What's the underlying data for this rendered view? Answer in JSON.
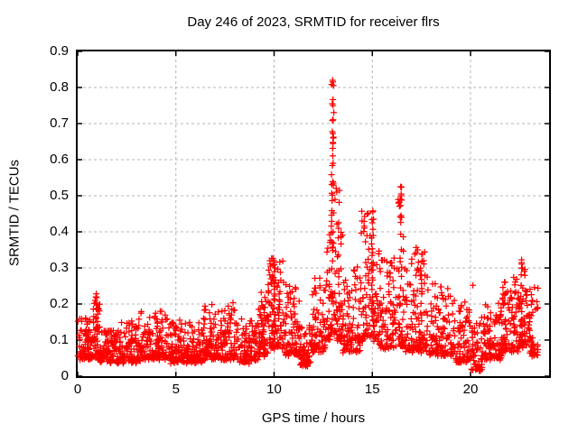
{
  "chart_data": {
    "type": "scatter",
    "title": "Day 246 of 2023, SRMTID for receiver flrs",
    "xlabel": "GPS time / hours",
    "ylabel": "SRMTID / TECUs",
    "xlim": [
      0,
      24
    ],
    "ylim": [
      0,
      0.9
    ],
    "xtick_values": [
      0,
      5,
      10,
      15,
      20
    ],
    "xtick_labels": [
      "0",
      "5",
      "10",
      "15",
      "20"
    ],
    "ytick_values": [
      0,
      0.1,
      0.2,
      0.3,
      0.4,
      0.5,
      0.6,
      0.7,
      0.8,
      0.9
    ],
    "ytick_labels": [
      "0",
      "0.1",
      "0.2",
      "0.3",
      "0.4",
      "0.5",
      "0.6",
      "0.7",
      "0.8",
      "0.9"
    ],
    "grid": {
      "show": true,
      "color": "#b4b4b4",
      "dash": [
        3,
        3
      ]
    },
    "axis_color": "#000000",
    "background_color": "#ffffff",
    "marker": {
      "shape": "plus",
      "color": "#ff0000",
      "size": 7
    },
    "x_data_range": [
      0,
      23.45
    ],
    "peak_summary": {
      "baseline_level": 0.09,
      "main_peak": {
        "x": 13.0,
        "y": 0.82
      },
      "secondary_peaks": [
        {
          "x": 1.0,
          "y": 0.23
        },
        {
          "x": 10.0,
          "y": 0.32
        },
        {
          "x": 15.0,
          "y": 0.455
        },
        {
          "x": 16.45,
          "y": 0.525
        },
        {
          "x": 22.6,
          "y": 0.315
        }
      ]
    },
    "envelope_segments": [
      [
        0.0,
        0.7,
        0.05,
        0.16,
        2.0,
        110
      ],
      [
        0.7,
        1.15,
        0.05,
        0.225,
        1.9,
        120
      ],
      [
        1.15,
        2.2,
        0.04,
        0.13,
        2.0,
        100
      ],
      [
        2.2,
        3.2,
        0.04,
        0.155,
        2.0,
        100
      ],
      [
        3.2,
        4.7,
        0.05,
        0.185,
        2.2,
        100
      ],
      [
        4.7,
        6.4,
        0.04,
        0.15,
        2.0,
        100
      ],
      [
        6.4,
        8.1,
        0.05,
        0.2,
        2.2,
        105
      ],
      [
        8.1,
        9.2,
        0.04,
        0.16,
        2.0,
        100
      ],
      [
        9.2,
        9.7,
        0.06,
        0.24,
        1.8,
        115
      ],
      [
        9.7,
        10.5,
        0.08,
        0.33,
        1.8,
        130
      ],
      [
        10.5,
        11.3,
        0.06,
        0.26,
        2.0,
        110
      ],
      [
        11.3,
        11.9,
        0.03,
        0.14,
        1.8,
        100
      ],
      [
        11.9,
        12.6,
        0.07,
        0.28,
        2.0,
        110
      ],
      [
        12.6,
        12.85,
        0.1,
        0.46,
        2.4,
        120
      ],
      [
        12.85,
        13.15,
        0.12,
        0.83,
        2.4,
        130
      ],
      [
        13.15,
        13.5,
        0.1,
        0.56,
        2.5,
        120
      ],
      [
        13.5,
        14.4,
        0.07,
        0.3,
        2.2,
        105
      ],
      [
        14.4,
        15.35,
        0.1,
        0.46,
        2.2,
        115
      ],
      [
        15.35,
        16.2,
        0.08,
        0.33,
        2.2,
        105
      ],
      [
        16.2,
        16.7,
        0.08,
        0.53,
        2.5,
        110
      ],
      [
        16.7,
        17.9,
        0.07,
        0.36,
        2.4,
        105
      ],
      [
        17.9,
        19.2,
        0.06,
        0.26,
        2.2,
        100
      ],
      [
        19.2,
        20.0,
        0.04,
        0.22,
        2.2,
        95
      ],
      [
        20.0,
        20.6,
        0.02,
        0.16,
        1.8,
        90
      ],
      [
        20.6,
        21.6,
        0.05,
        0.2,
        2.0,
        105
      ],
      [
        21.6,
        22.45,
        0.07,
        0.27,
        2.2,
        105
      ],
      [
        22.45,
        22.95,
        0.08,
        0.33,
        2.0,
        110
      ],
      [
        22.95,
        23.45,
        0.06,
        0.25,
        2.2,
        100
      ]
    ],
    "column_clusters": [
      [
        0.95,
        12,
        0.1,
        0.225
      ],
      [
        9.35,
        8,
        0.1,
        0.23
      ],
      [
        10.0,
        14,
        0.12,
        0.315
      ],
      [
        12.95,
        16,
        0.3,
        0.7
      ],
      [
        13.0,
        10,
        0.4,
        0.82
      ],
      [
        13.3,
        8,
        0.2,
        0.52
      ],
      [
        15.0,
        12,
        0.2,
        0.45
      ],
      [
        16.45,
        8,
        0.25,
        0.5
      ],
      [
        17.5,
        8,
        0.15,
        0.34
      ],
      [
        22.6,
        10,
        0.12,
        0.315
      ]
    ],
    "outlier_points": [
      [
        12.98,
        0.82
      ],
      [
        13.02,
        0.805
      ],
      [
        12.96,
        0.755
      ],
      [
        13.0,
        0.75
      ],
      [
        12.99,
        0.71
      ],
      [
        13.01,
        0.66
      ],
      [
        13.0,
        0.645
      ],
      [
        16.44,
        0.525
      ],
      [
        16.47,
        0.505
      ],
      [
        16.42,
        0.49
      ],
      [
        16.46,
        0.445
      ],
      [
        16.49,
        0.44
      ],
      [
        15.03,
        0.455
      ],
      [
        15.06,
        0.435
      ],
      [
        15.0,
        0.425
      ],
      [
        10.02,
        0.315
      ],
      [
        10.05,
        0.3
      ],
      [
        0.95,
        0.228
      ],
      [
        20.12,
        0.252
      ],
      [
        22.6,
        0.315
      ],
      [
        22.64,
        0.3
      ],
      [
        23.3,
        0.185
      ]
    ],
    "seed": 7
  }
}
